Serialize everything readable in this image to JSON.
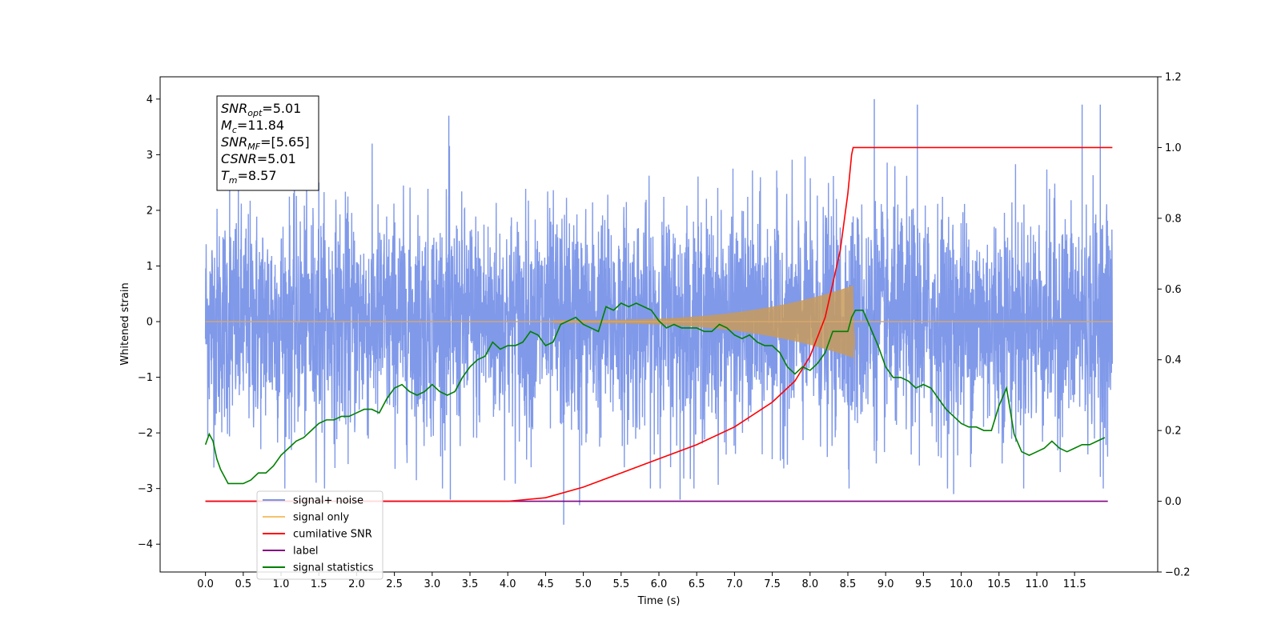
{
  "chart_data": {
    "type": "line",
    "xlabel": "Time (s)",
    "ylabel": "Whitened strain",
    "xlim": [
      -0.6,
      12.6
    ],
    "ylim": [
      -4.5,
      4.4
    ],
    "y2lim": [
      -0.2,
      1.2
    ],
    "x_ticks": [
      0.0,
      0.5,
      1.0,
      1.5,
      2.0,
      2.5,
      3.0,
      3.5,
      4.0,
      4.5,
      5.0,
      5.5,
      6.0,
      6.5,
      7.0,
      7.5,
      8.0,
      8.5,
      9.0,
      9.5,
      10.0,
      10.5,
      11.0,
      11.5
    ],
    "x_tick_labels": [
      "0.0",
      "0.5",
      "1.0",
      "1.5",
      "2.0",
      "2.5",
      "3.0",
      "3.5",
      "4.0",
      "4.5",
      "5.0",
      "5.5",
      "6.0",
      "6.5",
      "7.0",
      "7.5",
      "8.0",
      "8.5",
      "9.0",
      "9.5",
      "10.0",
      "10.5",
      "11.0",
      "11.5"
    ],
    "y_ticks": [
      -4,
      -3,
      -2,
      -1,
      0,
      1,
      2,
      3,
      4
    ],
    "y2_ticks": [
      -0.2,
      0.0,
      0.2,
      0.4,
      0.6,
      0.8,
      1.0,
      1.2
    ],
    "y2_tick_labels": [
      "−0.2",
      "0.0",
      "0.2",
      "0.4",
      "0.6",
      "0.8",
      "1.0",
      "1.2"
    ],
    "grid": false,
    "legend": {
      "placement": "lower-left",
      "entries": [
        {
          "label": "signal+ noise",
          "color": "#7994e8"
        },
        {
          "label": "signal only",
          "color": "#f5c16b"
        },
        {
          "label": "cumilative SNR",
          "color": "#ff0000"
        },
        {
          "label": "label",
          "color": "#800080"
        },
        {
          "label": "signal statistics",
          "color": "#008000"
        }
      ]
    },
    "annotation": {
      "lines": [
        {
          "name": "SNR",
          "sub": "opt",
          "value": "=5.01"
        },
        {
          "name": "M",
          "sub": "c",
          "value": "=11.84"
        },
        {
          "name": "SNR",
          "sub": "MF",
          "value": "=[5.65]"
        },
        {
          "name": "CSNR",
          "sub": "",
          "value": "=5.01"
        },
        {
          "name": "T",
          "sub": "m",
          "value": "=8.57"
        }
      ]
    },
    "series": [
      {
        "name": "signal+ noise",
        "axis": "left",
        "color": "#7994e8",
        "x_range": [
          0.0,
          12.0
        ],
        "mean": 0.0,
        "std": 1.0,
        "spikes": [
          [
            0.32,
            2.9
          ],
          [
            3.22,
            3.7
          ],
          [
            4.74,
            -3.65
          ],
          [
            8.85,
            4.0
          ],
          [
            9.42,
            3.9
          ],
          [
            11.6,
            3.9
          ],
          [
            11.84,
            3.9
          ],
          [
            1.5,
            2.5
          ],
          [
            9.9,
            -3.1
          ],
          [
            6.28,
            -3.2
          ],
          [
            3.24,
            -3.2
          ],
          [
            4.95,
            -3.3
          ]
        ]
      },
      {
        "name": "signal only",
        "axis": "left",
        "color": "#c89a5a",
        "merger_time": 8.57,
        "peak_amplitude": 0.65,
        "x_range": [
          0.0,
          12.0
        ]
      },
      {
        "name": "cumilative SNR",
        "axis": "right",
        "color": "#ff0000",
        "x": [
          0.0,
          4.0,
          4.5,
          5.0,
          5.5,
          6.0,
          6.5,
          7.0,
          7.5,
          7.8,
          8.0,
          8.2,
          8.4,
          8.5,
          8.55,
          8.57,
          12.0
        ],
        "values": [
          0.0,
          0.0,
          0.01,
          0.04,
          0.08,
          0.12,
          0.16,
          0.21,
          0.28,
          0.34,
          0.41,
          0.52,
          0.71,
          0.87,
          0.98,
          1.0,
          1.0
        ]
      },
      {
        "name": "label",
        "axis": "right",
        "color": "#800080",
        "x": [
          0.0,
          11.94
        ],
        "values": [
          0.0,
          0.0
        ]
      },
      {
        "name": "signal statistics",
        "axis": "right",
        "color": "#008000",
        "x": [
          0.0,
          0.05,
          0.1,
          0.15,
          0.2,
          0.3,
          0.4,
          0.5,
          0.6,
          0.7,
          0.8,
          0.9,
          1.0,
          1.1,
          1.2,
          1.3,
          1.4,
          1.5,
          1.6,
          1.7,
          1.8,
          1.9,
          2.0,
          2.1,
          2.2,
          2.3,
          2.4,
          2.5,
          2.6,
          2.7,
          2.8,
          2.9,
          3.0,
          3.1,
          3.2,
          3.3,
          3.4,
          3.5,
          3.6,
          3.7,
          3.8,
          3.9,
          4.0,
          4.1,
          4.2,
          4.3,
          4.4,
          4.5,
          4.6,
          4.7,
          4.8,
          4.9,
          5.0,
          5.1,
          5.2,
          5.3,
          5.4,
          5.5,
          5.6,
          5.7,
          5.8,
          5.9,
          6.0,
          6.1,
          6.2,
          6.3,
          6.4,
          6.5,
          6.6,
          6.7,
          6.8,
          6.9,
          7.0,
          7.1,
          7.2,
          7.3,
          7.4,
          7.5,
          7.6,
          7.7,
          7.8,
          7.9,
          8.0,
          8.1,
          8.2,
          8.3,
          8.4,
          8.5,
          8.55,
          8.6,
          8.7,
          8.8,
          8.9,
          9.0,
          9.1,
          9.2,
          9.3,
          9.4,
          9.5,
          9.6,
          9.7,
          9.8,
          9.9,
          10.0,
          10.1,
          10.2,
          10.3,
          10.4,
          10.5,
          10.6,
          10.7,
          10.8,
          10.9,
          11.0,
          11.1,
          11.2,
          11.3,
          11.4,
          11.5,
          11.6,
          11.7,
          11.8,
          11.9
        ],
        "values": [
          0.16,
          0.19,
          0.17,
          0.12,
          0.09,
          0.05,
          0.05,
          0.05,
          0.06,
          0.08,
          0.08,
          0.1,
          0.13,
          0.15,
          0.17,
          0.18,
          0.2,
          0.22,
          0.23,
          0.23,
          0.24,
          0.24,
          0.25,
          0.26,
          0.26,
          0.25,
          0.29,
          0.32,
          0.33,
          0.31,
          0.3,
          0.31,
          0.33,
          0.31,
          0.3,
          0.31,
          0.35,
          0.38,
          0.4,
          0.41,
          0.45,
          0.43,
          0.44,
          0.44,
          0.45,
          0.48,
          0.47,
          0.44,
          0.45,
          0.5,
          0.51,
          0.52,
          0.5,
          0.49,
          0.48,
          0.55,
          0.54,
          0.56,
          0.55,
          0.56,
          0.55,
          0.54,
          0.51,
          0.49,
          0.5,
          0.49,
          0.49,
          0.49,
          0.48,
          0.48,
          0.5,
          0.49,
          0.47,
          0.46,
          0.47,
          0.45,
          0.44,
          0.44,
          0.42,
          0.38,
          0.36,
          0.38,
          0.37,
          0.39,
          0.42,
          0.48,
          0.48,
          0.48,
          0.52,
          0.54,
          0.54,
          0.49,
          0.44,
          0.38,
          0.35,
          0.35,
          0.34,
          0.32,
          0.33,
          0.32,
          0.29,
          0.26,
          0.24,
          0.22,
          0.21,
          0.21,
          0.2,
          0.2,
          0.27,
          0.32,
          0.19,
          0.14,
          0.13,
          0.14,
          0.15,
          0.17,
          0.15,
          0.14,
          0.15,
          0.16,
          0.16,
          0.17,
          0.18
        ]
      }
    ]
  }
}
